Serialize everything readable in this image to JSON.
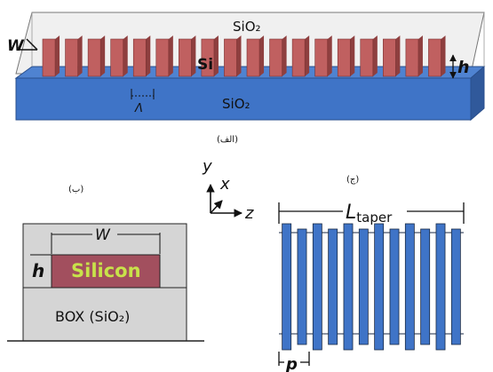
{
  "panel_a": {
    "caption": "(الف)",
    "top_cladding": "SiO₂",
    "bottom_cladding": "SiO₂",
    "core": "Si",
    "width_symbol": "W",
    "height_symbol": "h",
    "period_symbol": "Λ",
    "grating_teeth": 18,
    "colors": {
      "cladding_top": "#eeeeee",
      "substrate": "#3f74c7",
      "teeth": "#c06060"
    }
  },
  "panel_b": {
    "caption": "(ب)",
    "width_symbol": "W",
    "height_symbol": "h",
    "core_label": "Silicon",
    "box_label": "BOX (SiO₂)",
    "colors": {
      "cladding": "#d4d4d4",
      "core": "#a24f5e",
      "core_text": "#c8e24a"
    }
  },
  "axes": {
    "y": "y",
    "x": "x",
    "z": "z"
  },
  "panel_c": {
    "caption": "(ج)",
    "length_label": "L",
    "length_subscript": "taper",
    "period_symbol": "p",
    "segment_count": 12,
    "colors": {
      "segment": "#3f74c7",
      "outline": "#1a2a44"
    }
  }
}
